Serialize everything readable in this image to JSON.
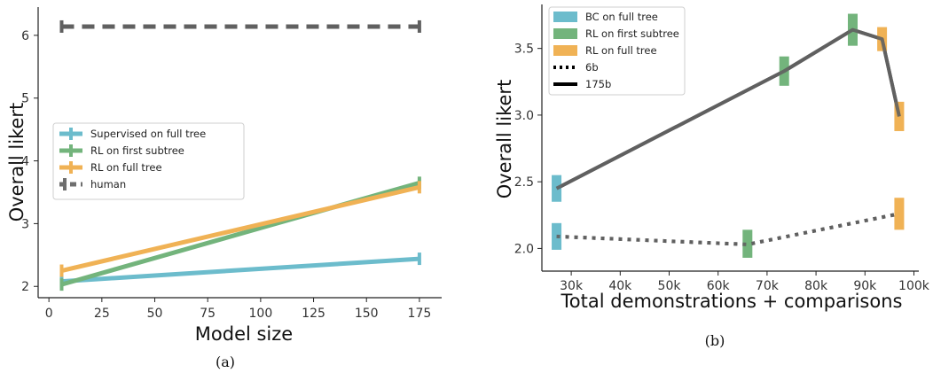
{
  "colors": {
    "blue": "#6cbccc",
    "green": "#73b47c",
    "orange": "#f0b255",
    "gray": "#606060"
  },
  "chart_data": [
    {
      "type": "line",
      "caption": "(a)",
      "xlabel": "Model size",
      "ylabel": "Overall likert",
      "xlim": [
        -3,
        183
      ],
      "ylim": [
        1.82,
        6.45
      ],
      "xticks": [
        0,
        25,
        50,
        75,
        100,
        125,
        150,
        175
      ],
      "yticks": [
        2,
        3,
        4,
        5,
        6
      ],
      "legend_position": "center-left",
      "series": [
        {
          "name": "Supervised on full tree",
          "color_key": "blue",
          "dash": "solid",
          "x": [
            6,
            175
          ],
          "y": [
            2.08,
            2.44
          ]
        },
        {
          "name": "RL on first subtree",
          "color_key": "green",
          "dash": "solid",
          "x": [
            6,
            175
          ],
          "y": [
            2.03,
            3.65
          ]
        },
        {
          "name": "RL on full tree",
          "color_key": "orange",
          "dash": "solid",
          "x": [
            6,
            175
          ],
          "y": [
            2.25,
            3.58
          ]
        },
        {
          "name": "human",
          "color_key": "gray",
          "dash": "dashed",
          "x": [
            6,
            175
          ],
          "y": [
            6.14,
            6.14
          ]
        }
      ]
    },
    {
      "type": "line",
      "caption": "(b)",
      "xlabel": "Total demonstrations + comparisons",
      "ylabel": "Overall likert",
      "xlim": [
        24000,
        101000
      ],
      "ylim": [
        1.83,
        3.83
      ],
      "xticks": [
        30000,
        40000,
        50000,
        60000,
        70000,
        80000,
        90000,
        100000
      ],
      "xtick_labels": [
        "30k",
        "40k",
        "50k",
        "60k",
        "70k",
        "80k",
        "90k",
        "100k"
      ],
      "yticks": [
        2.0,
        2.5,
        3.0,
        3.5
      ],
      "ytick_labels": [
        "2.0",
        "2.5",
        "3.0",
        "3.5"
      ],
      "legend_position": "top-left",
      "legend": [
        {
          "name": "BC on full tree",
          "kind": "patch",
          "color_key": "blue"
        },
        {
          "name": "RL on first subtree",
          "kind": "patch",
          "color_key": "green"
        },
        {
          "name": "RL on full tree",
          "kind": "patch",
          "color_key": "orange"
        },
        {
          "name": "6b",
          "kind": "line",
          "dash": "dotted"
        },
        {
          "name": "175b",
          "kind": "line",
          "dash": "solid"
        }
      ],
      "series": [
        {
          "name": "6b",
          "dash": "dotted",
          "x": [
            27000,
            66000,
            97000
          ],
          "y": [
            2.09,
            2.03,
            2.26
          ]
        },
        {
          "name": "175b",
          "dash": "solid",
          "x": [
            27000,
            73500,
            87500,
            93500,
            97000
          ],
          "y": [
            2.45,
            3.33,
            3.64,
            3.57,
            2.99
          ]
        }
      ],
      "points": [
        {
          "method": "BC on full tree",
          "model": "6b",
          "x": 27000,
          "y": 2.09,
          "low": 1.99,
          "high": 2.19
        },
        {
          "method": "BC on full tree",
          "model": "175b",
          "x": 27000,
          "y": 2.45,
          "low": 2.35,
          "high": 2.55
        },
        {
          "method": "RL on first subtree",
          "model": "6b",
          "x": 66000,
          "y": 2.03,
          "low": 1.93,
          "high": 2.14
        },
        {
          "method": "RL on first subtree",
          "model": "175b",
          "x": 73500,
          "y": 3.33,
          "low": 3.22,
          "high": 3.44
        },
        {
          "method": "RL on first subtree",
          "model": "175b",
          "x": 87500,
          "y": 3.64,
          "low": 3.52,
          "high": 3.76
        },
        {
          "method": "RL on full tree",
          "model": "175b",
          "x": 93500,
          "y": 3.57,
          "low": 3.48,
          "high": 3.66
        },
        {
          "method": "RL on full tree",
          "model": "175b",
          "x": 97000,
          "y": 2.99,
          "low": 2.88,
          "high": 3.1
        },
        {
          "method": "RL on full tree",
          "model": "6b",
          "x": 97000,
          "y": 2.26,
          "low": 2.14,
          "high": 2.38
        }
      ]
    }
  ]
}
